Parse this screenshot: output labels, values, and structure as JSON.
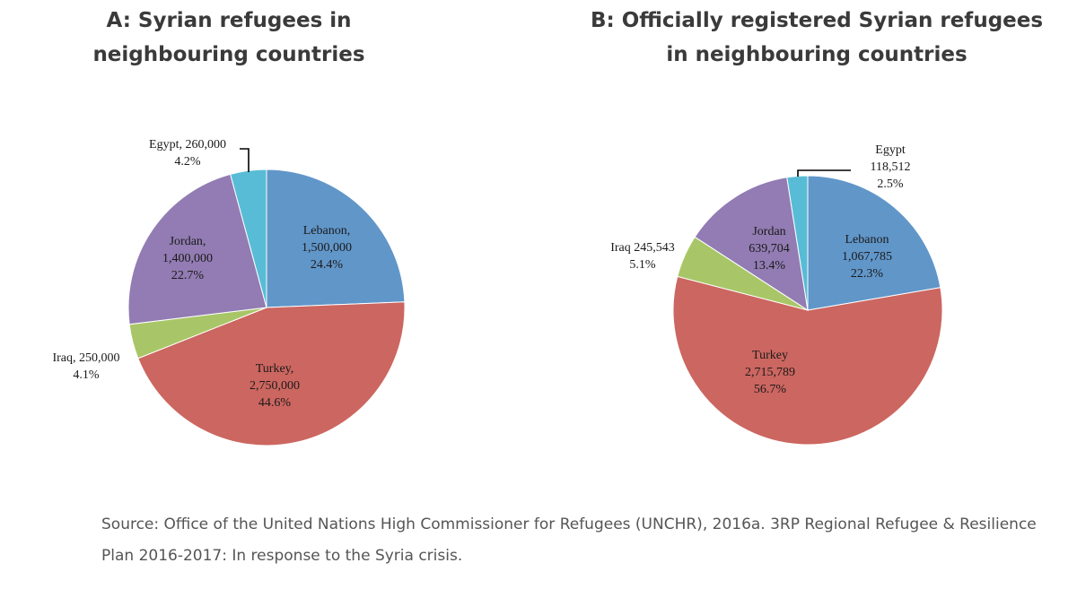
{
  "chart_data": [
    {
      "type": "pie",
      "title_lines": [
        "A: Syrian refugees in",
        "neighbouring countries"
      ],
      "categories": [
        "Lebanon",
        "Turkey",
        "Iraq",
        "Jordan",
        "Egypt"
      ],
      "values": [
        1500000,
        2750000,
        250000,
        1400000,
        260000
      ],
      "percents": [
        24.4,
        44.6,
        4.1,
        22.7,
        4.2
      ],
      "colors": [
        "#6196c9",
        "#cc6660",
        "#a8c667",
        "#927cb3",
        "#58bcd6"
      ],
      "labels": [
        [
          "Lebanon,",
          "1,500,000",
          "24.4%"
        ],
        [
          "Turkey,",
          "2,750,000",
          "44.6%"
        ],
        [
          "Iraq, 250,000",
          "4.1%"
        ],
        [
          "Jordan,",
          "1,400,000",
          "22.7%"
        ],
        [
          "Egypt, 260,000",
          "4.2%"
        ]
      ]
    },
    {
      "type": "pie",
      "title_lines": [
        "B: Officially registered Syrian refugees",
        "in neighbouring countries"
      ],
      "categories": [
        "Lebanon",
        "Turkey",
        "Iraq",
        "Jordan",
        "Egypt"
      ],
      "values": [
        1067785,
        2715789,
        245543,
        639704,
        118512
      ],
      "percents": [
        22.3,
        56.7,
        5.1,
        13.4,
        2.5
      ],
      "colors": [
        "#6196c9",
        "#cc6660",
        "#a8c667",
        "#927cb3",
        "#58bcd6"
      ],
      "labels": [
        [
          "Lebanon",
          "1,067,785",
          "22.3%"
        ],
        [
          "Turkey",
          "2,715,789",
          "56.7%"
        ],
        [
          "Iraq 245,543",
          "5.1%"
        ],
        [
          "Jordan",
          "639,704",
          "13.4%"
        ],
        [
          "Egypt",
          "118,512",
          "2.5%"
        ]
      ]
    }
  ],
  "source": {
    "text": "Source: Office of the United Nations High Commissioner for Refugees (UNCHR), 2016a. 3RP Regional Refugee & Resilience Plan 2016-2017: In response to the Syria crisis."
  }
}
